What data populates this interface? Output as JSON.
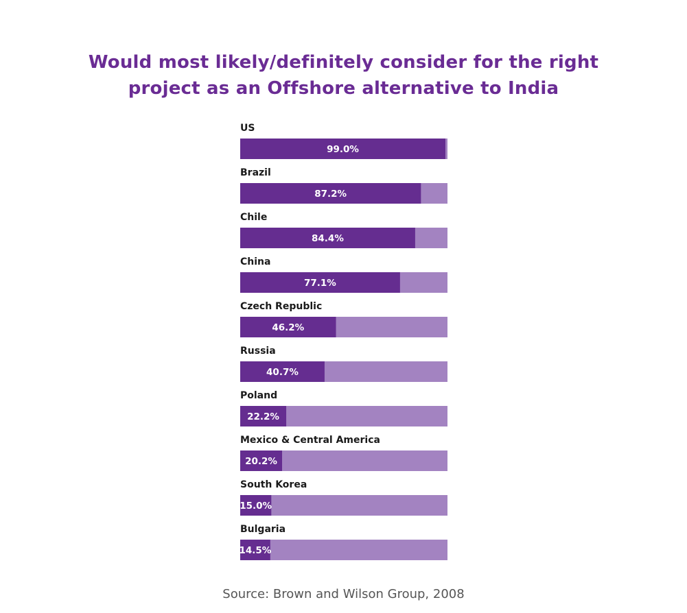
{
  "colors": {
    "title": "#6a2c94",
    "bar_filled": "#652d90",
    "bar_remainder": "#a383c1",
    "label_text": "#1a1a1a",
    "value_text": "#ffffff",
    "source_text": "#555555"
  },
  "chart_data": {
    "type": "bar",
    "orientation": "horizontal",
    "stacked_to_100": true,
    "title_lines": [
      "Would most likely/definitely consider for the right",
      "project as an Offshore alternative to India"
    ],
    "categories": [
      "US",
      "Brazil",
      "Chile",
      "China",
      "Czech Republic",
      "Russia",
      "Poland",
      "Mexico & Central America",
      "South Korea",
      "Bulgaria"
    ],
    "values": [
      99.0,
      87.2,
      84.4,
      77.1,
      46.2,
      40.7,
      22.2,
      20.2,
      15.0,
      14.5
    ],
    "value_labels": [
      "99.0%",
      "87.2%",
      "84.4%",
      "77.1%",
      "46.2%",
      "40.7%",
      "22.2%",
      "20.2%",
      "15.0%",
      "14.5%"
    ],
    "xlim": [
      0,
      100
    ],
    "grid": false,
    "source": "Source: Brown and Wilson Group, 2008"
  }
}
